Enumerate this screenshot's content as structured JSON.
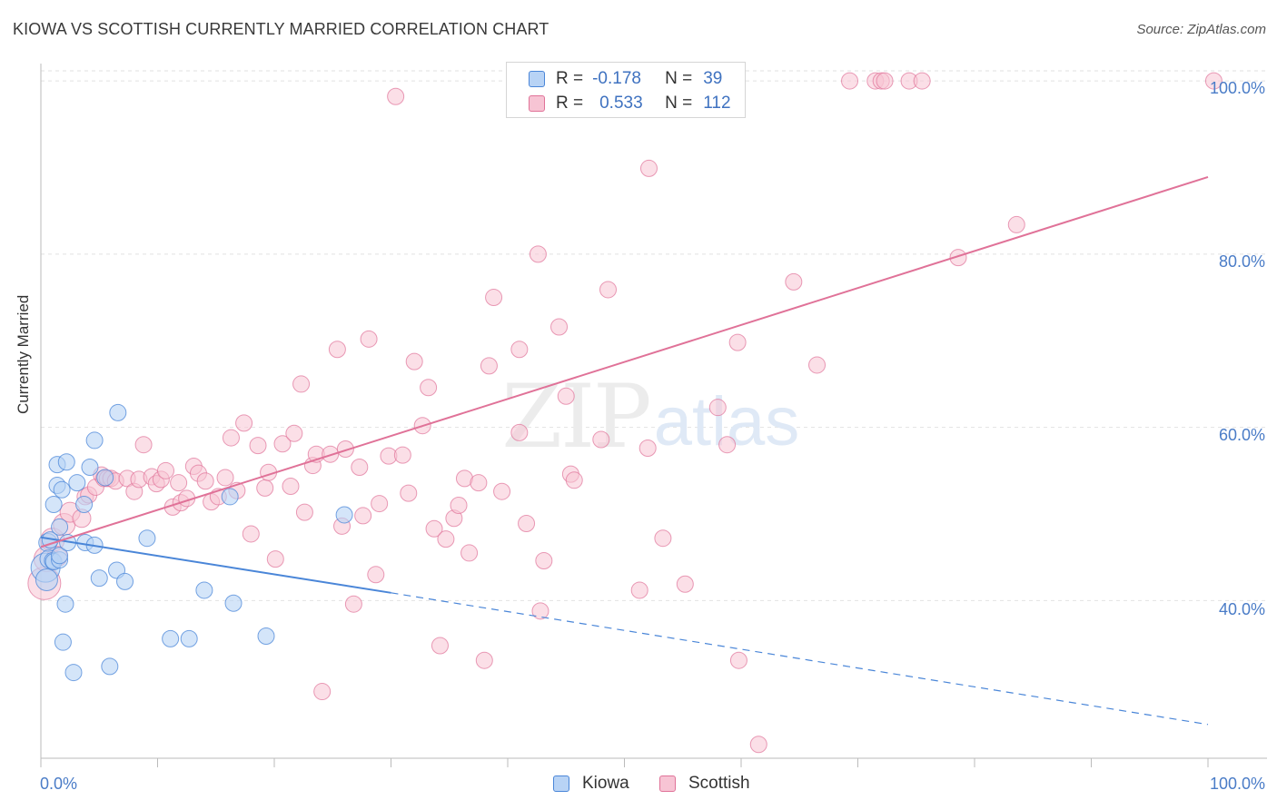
{
  "title": "KIOWA VS SCOTTISH CURRENTLY MARRIED CORRELATION CHART",
  "source": "Source: ZipAtlas.com",
  "watermark": {
    "zip": "ZIP",
    "atlas": "atlas"
  },
  "colors": {
    "kiowa": "#4a86d8",
    "kiowa_fill": "#b8d3f5",
    "scottish": "#e07298",
    "scottish_fill": "#f7c4d4",
    "axis_label": "#4a7cc7",
    "grid": "#e2e2e2"
  },
  "legend": {
    "kiowa": {
      "r_label": "R =",
      "r_value": "-0.178",
      "n_label": "N =",
      "n_value": "39"
    },
    "scottish": {
      "r_label": "R =",
      "r_value": "0.533",
      "n_label": "N =",
      "n_value": "112"
    }
  },
  "chart_data": {
    "type": "scatter",
    "title": "KIOWA VS SCOTTISH CURRENTLY MARRIED CORRELATION CHART",
    "xlabel": "",
    "ylabel": "Currently Married",
    "xlim": [
      0,
      100
    ],
    "ylim": [
      21.8,
      102.0
    ],
    "x_tick_labels": [
      "0.0%",
      "100.0%"
    ],
    "y_ticks": [
      40,
      60,
      80,
      100
    ],
    "y_tick_labels": [
      "40.0%",
      "60.0%",
      "80.0%",
      "100.0%"
    ],
    "grid": true,
    "legend_position": "top-center",
    "series": [
      {
        "name": "Kiowa",
        "color": "#4a86d8",
        "trend": {
          "x0": 0,
          "y0": 47.3,
          "x1": 30,
          "y1": 40.9,
          "dashed_to_x": 100,
          "dashed_to_y": 25.7
        },
        "points": [
          [
            0.4,
            43.8,
            16
          ],
          [
            0.5,
            42.4,
            12
          ],
          [
            0.6,
            46.7,
            10
          ],
          [
            0.7,
            44.8,
            10
          ],
          [
            0.8,
            47.0,
            9
          ],
          [
            1.0,
            44.6,
            9
          ],
          [
            1.1,
            44.5,
            9
          ],
          [
            1.1,
            51.1,
            9
          ],
          [
            1.4,
            55.7,
            9
          ],
          [
            1.4,
            53.3,
            9
          ],
          [
            1.6,
            44.7,
            9
          ],
          [
            1.6,
            48.5,
            9
          ],
          [
            1.6,
            45.2,
            9
          ],
          [
            1.8,
            52.8,
            9
          ],
          [
            1.9,
            35.2,
            9
          ],
          [
            2.1,
            39.6,
            9
          ],
          [
            2.2,
            56.0,
            9
          ],
          [
            2.3,
            46.7,
            9
          ],
          [
            2.8,
            31.7,
            9
          ],
          [
            3.1,
            53.6,
            9
          ],
          [
            3.7,
            51.1,
            9
          ],
          [
            3.8,
            46.7,
            9
          ],
          [
            4.2,
            55.4,
            9
          ],
          [
            4.6,
            58.5,
            9
          ],
          [
            4.6,
            46.4,
            9
          ],
          [
            5.0,
            42.6,
            9
          ],
          [
            5.5,
            54.2,
            9
          ],
          [
            5.9,
            32.4,
            9
          ],
          [
            6.5,
            43.5,
            9
          ],
          [
            6.6,
            61.7,
            9
          ],
          [
            7.2,
            42.2,
            9
          ],
          [
            9.1,
            47.2,
            9
          ],
          [
            11.1,
            35.6,
            9
          ],
          [
            12.7,
            35.6,
            9
          ],
          [
            14.0,
            41.2,
            9
          ],
          [
            16.2,
            52.0,
            9
          ],
          [
            16.5,
            39.7,
            9
          ],
          [
            19.3,
            35.9,
            9
          ],
          [
            26.0,
            49.9,
            9
          ]
        ]
      },
      {
        "name": "Scottish",
        "color": "#e07298",
        "trend": {
          "x0": 0,
          "y0": 46.2,
          "x1": 100,
          "y1": 88.9
        },
        "points": [
          [
            0.3,
            42.0,
            18
          ],
          [
            0.5,
            44.8,
            14
          ],
          [
            1.0,
            47.0,
            13
          ],
          [
            1.4,
            45.1,
            11
          ],
          [
            2.0,
            48.8,
            12
          ],
          [
            2.5,
            50.2,
            11
          ],
          [
            3.5,
            49.5,
            10
          ],
          [
            3.8,
            52.0,
            9
          ],
          [
            4.1,
            52.2,
            9
          ],
          [
            4.7,
            53.1,
            9
          ],
          [
            5.2,
            54.5,
            9
          ],
          [
            5.4,
            54.1,
            9
          ],
          [
            5.7,
            54.1,
            9
          ],
          [
            6.0,
            54.1,
            9
          ],
          [
            6.4,
            53.8,
            9
          ],
          [
            7.4,
            54.1,
            9
          ],
          [
            8.0,
            52.6,
            9
          ],
          [
            8.4,
            54.0,
            9
          ],
          [
            8.8,
            58.0,
            9
          ],
          [
            9.5,
            54.3,
            9
          ],
          [
            9.9,
            53.5,
            9
          ],
          [
            10.3,
            54.0,
            9
          ],
          [
            10.7,
            55.0,
            9
          ],
          [
            11.3,
            50.8,
            9
          ],
          [
            11.8,
            53.6,
            9
          ],
          [
            12.0,
            51.3,
            9
          ],
          [
            12.5,
            51.8,
            9
          ],
          [
            13.1,
            55.5,
            9
          ],
          [
            13.5,
            54.7,
            9
          ],
          [
            14.1,
            53.8,
            9
          ],
          [
            14.6,
            51.4,
            9
          ],
          [
            15.2,
            52.0,
            9
          ],
          [
            15.8,
            54.2,
            9
          ],
          [
            16.3,
            58.8,
            9
          ],
          [
            16.8,
            52.7,
            9
          ],
          [
            17.4,
            60.5,
            9
          ],
          [
            18.0,
            47.7,
            9
          ],
          [
            18.6,
            57.9,
            9
          ],
          [
            19.2,
            53.0,
            9
          ],
          [
            19.5,
            54.8,
            9
          ],
          [
            20.1,
            44.8,
            9
          ],
          [
            20.7,
            58.1,
            9
          ],
          [
            21.4,
            53.2,
            9
          ],
          [
            21.7,
            59.3,
            9
          ],
          [
            22.3,
            65.0,
            9
          ],
          [
            22.6,
            50.2,
            9
          ],
          [
            23.3,
            55.6,
            9
          ],
          [
            23.6,
            56.9,
            9
          ],
          [
            24.1,
            29.5,
            9
          ],
          [
            24.8,
            56.9,
            9
          ],
          [
            25.4,
            69.0,
            9
          ],
          [
            25.8,
            48.6,
            9
          ],
          [
            26.1,
            57.5,
            9
          ],
          [
            26.8,
            39.6,
            9
          ],
          [
            27.3,
            55.4,
            9
          ],
          [
            27.6,
            49.8,
            9
          ],
          [
            28.1,
            70.2,
            9
          ],
          [
            28.7,
            43.0,
            9
          ],
          [
            29.0,
            51.2,
            9
          ],
          [
            29.8,
            56.7,
            9
          ],
          [
            30.4,
            98.2,
            9
          ],
          [
            31.0,
            56.8,
            9
          ],
          [
            31.5,
            52.4,
            9
          ],
          [
            32.0,
            67.6,
            9
          ],
          [
            32.7,
            60.2,
            9
          ],
          [
            33.2,
            64.6,
            9
          ],
          [
            33.7,
            48.3,
            9
          ],
          [
            34.2,
            34.8,
            9
          ],
          [
            34.7,
            47.1,
            9
          ],
          [
            35.4,
            49.5,
            9
          ],
          [
            35.8,
            51.0,
            9
          ],
          [
            36.3,
            54.1,
            9
          ],
          [
            36.7,
            45.5,
            9
          ],
          [
            37.5,
            53.6,
            9
          ],
          [
            38.0,
            33.1,
            9
          ],
          [
            38.4,
            67.1,
            9
          ],
          [
            38.8,
            75.0,
            9
          ],
          [
            39.5,
            52.6,
            9
          ],
          [
            41.0,
            59.4,
            9
          ],
          [
            41.0,
            69.0,
            9
          ],
          [
            41.6,
            48.9,
            9
          ],
          [
            42.6,
            80.0,
            9
          ],
          [
            42.8,
            38.8,
            9
          ],
          [
            43.1,
            44.6,
            9
          ],
          [
            44.4,
            71.6,
            9
          ],
          [
            45.0,
            63.6,
            9
          ],
          [
            45.4,
            54.6,
            9
          ],
          [
            45.7,
            53.9,
            9
          ],
          [
            48.0,
            58.6,
            9
          ],
          [
            48.6,
            75.9,
            9
          ],
          [
            50.4,
            100.0,
            9
          ],
          [
            51.3,
            41.2,
            9
          ],
          [
            52.0,
            57.6,
            9
          ],
          [
            52.1,
            89.9,
            9
          ],
          [
            53.3,
            47.2,
            9
          ],
          [
            55.2,
            41.9,
            9
          ],
          [
            58.0,
            62.3,
            9
          ],
          [
            58.8,
            58.0,
            9
          ],
          [
            59.7,
            69.8,
            9
          ],
          [
            59.8,
            33.1,
            9
          ],
          [
            61.5,
            23.4,
            9
          ],
          [
            64.5,
            76.8,
            9
          ],
          [
            66.5,
            67.2,
            9
          ],
          [
            69.3,
            100.0,
            9
          ],
          [
            71.5,
            100.0,
            9
          ],
          [
            72.0,
            100.0,
            9
          ],
          [
            72.3,
            100.0,
            9
          ],
          [
            74.4,
            100.0,
            9
          ],
          [
            75.5,
            100.0,
            9
          ],
          [
            78.6,
            79.6,
            9
          ],
          [
            83.6,
            83.4,
            9
          ],
          [
            100.5,
            100.0,
            9
          ]
        ]
      }
    ]
  },
  "bottom_legend": {
    "kiowa": "Kiowa",
    "scottish": "Scottish"
  }
}
